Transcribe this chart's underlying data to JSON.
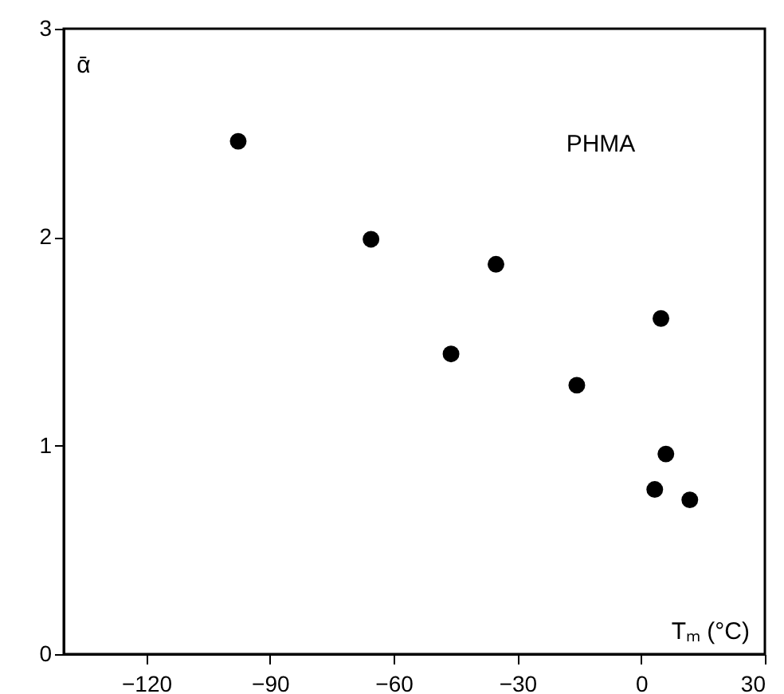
{
  "chart_data": {
    "type": "scatter",
    "xlabel": "Tₘ (°C)",
    "ylabel": "ᾱ",
    "x": [
      -97.7,
      -65.5,
      -35.2,
      -46.1,
      -15.6,
      4.8,
      6.0,
      3.3,
      11.8
    ],
    "values": [
      2.46,
      1.99,
      1.87,
      1.44,
      1.29,
      1.61,
      0.96,
      0.79,
      0.74
    ],
    "color": "#000000",
    "marker": "circle",
    "xlim": [
      -140,
      30
    ],
    "xticks": [
      -120,
      -90,
      -60,
      -30,
      0,
      30
    ],
    "ylim": [
      0,
      3
    ],
    "yticks": [
      0,
      1,
      2,
      3
    ],
    "annotations": [
      "PHMA"
    ],
    "grid": false
  }
}
